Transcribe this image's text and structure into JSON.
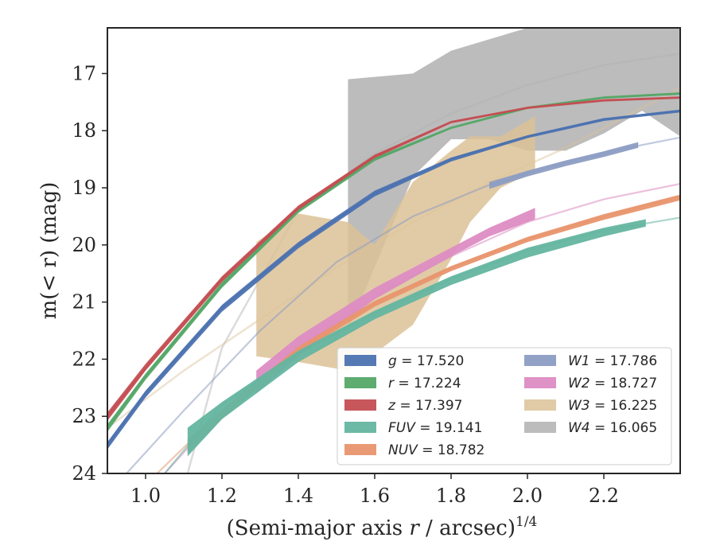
{
  "chart_data": {
    "type": "area",
    "xlabel": "(Semi-major axis r / arcsec)",
    "xlabel_exp": "1/4",
    "ylabel": "m(< r) (mag)",
    "xlim": [
      0.9,
      2.4
    ],
    "ylim": [
      24,
      16.2
    ],
    "y_inverted": true,
    "grid": false,
    "legend_position": "bottom-right",
    "x_ticks": [
      1.0,
      1.2,
      1.4,
      1.6,
      1.8,
      2.0,
      2.2
    ],
    "x_tick_labels": [
      "1.0",
      "1.2",
      "1.4",
      "1.6",
      "1.8",
      "2.0",
      "2.2"
    ],
    "y_ticks": [
      17,
      18,
      19,
      20,
      21,
      22,
      23,
      24
    ],
    "y_tick_labels": [
      "17",
      "18",
      "19",
      "20",
      "21",
      "22",
      "23",
      "24"
    ],
    "series": [
      {
        "name": "g",
        "legend_value": "= 17.520",
        "color": "#4c72b0",
        "thin_x": [
          0.9,
          1.0,
          1.2,
          1.4,
          1.6,
          1.8,
          2.0,
          2.2,
          2.4
        ],
        "thin_y": [
          23.5,
          22.6,
          21.1,
          20.0,
          19.1,
          18.5,
          18.1,
          17.8,
          17.65
        ],
        "band_x": [
          0.9,
          1.0,
          1.2,
          1.4,
          1.6,
          1.8,
          2.0,
          2.2,
          2.4
        ],
        "band_lo": [
          23.45,
          22.55,
          21.05,
          19.95,
          19.05,
          18.47,
          18.08,
          17.78,
          17.63
        ],
        "band_hi": [
          23.58,
          22.67,
          21.17,
          20.06,
          19.15,
          18.54,
          18.13,
          17.83,
          17.68
        ]
      },
      {
        "name": "r",
        "legend_value": "= 17.224",
        "color": "#55a868",
        "thin_x": [
          0.9,
          1.0,
          1.2,
          1.4,
          1.6,
          1.8,
          2.0,
          2.2,
          2.4
        ],
        "thin_y": [
          23.2,
          22.3,
          20.7,
          19.4,
          18.5,
          17.95,
          17.6,
          17.42,
          17.35
        ],
        "band_x": [
          0.9,
          1.0,
          1.2,
          1.4,
          1.6,
          1.8,
          2.0,
          2.2,
          2.4
        ],
        "band_lo": [
          23.14,
          22.25,
          20.65,
          19.36,
          18.47,
          17.93,
          17.58,
          17.4,
          17.33
        ],
        "band_hi": [
          23.27,
          22.36,
          20.75,
          19.44,
          18.53,
          17.97,
          17.62,
          17.44,
          17.37
        ]
      },
      {
        "name": "z",
        "legend_value": "= 17.397",
        "color": "#c44e52",
        "thin_x": [
          0.9,
          1.0,
          1.2,
          1.4,
          1.6,
          1.8,
          2.0,
          2.2,
          2.4
        ],
        "thin_y": [
          23.0,
          22.15,
          20.6,
          19.35,
          18.45,
          17.85,
          17.6,
          17.47,
          17.42
        ],
        "band_x": [
          0.9,
          1.0,
          1.2,
          1.4,
          1.6,
          1.8,
          2.0,
          2.2,
          2.4
        ],
        "band_lo": [
          22.93,
          22.08,
          20.55,
          19.31,
          18.42,
          17.83,
          17.58,
          17.45,
          17.4
        ],
        "band_hi": [
          23.08,
          22.2,
          20.65,
          19.39,
          18.48,
          17.87,
          17.62,
          17.49,
          17.44
        ]
      },
      {
        "name": "FUV",
        "legend_value": "= 19.141",
        "color": "#64b5a0",
        "thin_x": [
          1.05,
          1.2,
          1.4,
          1.6,
          1.8,
          2.0,
          2.2,
          2.4
        ],
        "thin_y": [
          24.0,
          22.8,
          21.9,
          21.2,
          20.6,
          20.1,
          19.75,
          19.52
        ],
        "band_x": [
          1.11,
          1.2,
          1.4,
          1.6,
          1.8,
          2.0,
          2.2,
          2.31
        ],
        "band_lo": [
          23.2,
          22.75,
          21.85,
          21.15,
          20.55,
          20.05,
          19.7,
          19.55
        ],
        "band_hi": [
          23.7,
          23.05,
          22.05,
          21.3,
          20.7,
          20.22,
          19.85,
          19.68
        ]
      },
      {
        "name": "NUV",
        "legend_value": "= 18.782",
        "color": "#e8956d",
        "thin_x": [
          1.03,
          1.2,
          1.4,
          1.6,
          1.8,
          2.0,
          2.2,
          2.4
        ],
        "thin_y": [
          24.0,
          22.9,
          21.8,
          21.0,
          20.4,
          19.9,
          19.5,
          19.15
        ],
        "band_x": [
          1.11,
          1.2,
          1.4,
          1.6,
          1.8,
          2.0,
          2.2,
          2.4
        ],
        "band_lo": [
          23.4,
          22.9,
          21.78,
          20.98,
          20.37,
          19.86,
          19.46,
          19.12
        ],
        "band_hi": [
          23.65,
          23.05,
          21.9,
          21.08,
          20.46,
          19.95,
          19.56,
          19.22
        ]
      },
      {
        "name": "W1",
        "legend_value": "= 17.786",
        "color": "#8c9dc3",
        "thin_x": [
          0.95,
          1.1,
          1.3,
          1.5,
          1.7,
          1.9,
          2.1,
          2.3,
          2.4
        ],
        "thin_y": [
          24.0,
          22.9,
          21.5,
          20.3,
          19.5,
          18.95,
          18.55,
          18.25,
          18.12
        ],
        "band_x": [
          1.9,
          2.0,
          2.1,
          2.2,
          2.29
        ],
        "band_lo": [
          18.9,
          18.7,
          18.52,
          18.36,
          18.2
        ],
        "band_hi": [
          19.02,
          18.8,
          18.62,
          18.46,
          18.3
        ]
      },
      {
        "name": "W2",
        "legend_value": "= 18.727",
        "color": "#dd8cc3",
        "thin_x": [
          1.05,
          1.2,
          1.4,
          1.6,
          1.8,
          2.0,
          2.2,
          2.4
        ],
        "thin_y": [
          24.0,
          22.9,
          21.8,
          20.9,
          20.2,
          19.6,
          19.2,
          18.93
        ],
        "band_x": [
          1.29,
          1.4,
          1.6,
          1.8,
          1.9,
          2.02
        ],
        "band_lo": [
          22.2,
          21.6,
          20.75,
          20.05,
          19.7,
          19.35
        ],
        "band_hi": [
          22.6,
          21.95,
          20.95,
          20.2,
          19.85,
          19.55
        ]
      },
      {
        "name": "W3",
        "legend_value": "= 16.225",
        "color": "#dcc297",
        "thin_x": [
          0.9,
          1.1,
          1.3,
          1.5,
          1.7,
          1.9,
          2.1,
          2.3,
          2.4
        ],
        "thin_y": [
          23.2,
          22.2,
          21.3,
          20.4,
          19.6,
          18.9,
          18.3,
          17.6,
          17.25
        ],
        "band_x": [
          1.29,
          1.4,
          1.53,
          1.6,
          1.7,
          1.8,
          1.85,
          1.93,
          2.02
        ],
        "band_lo": [
          19.95,
          19.45,
          19.6,
          20.0,
          18.9,
          18.35,
          18.1,
          18.1,
          17.75
        ],
        "band_hi": [
          21.95,
          22.05,
          22.2,
          21.9,
          21.4,
          20.25,
          19.6,
          19.0,
          18.7
        ]
      },
      {
        "name": "W4",
        "legend_value": "= 16.065",
        "color": "#b0b0b0",
        "thin_x": [
          1.11,
          1.2,
          1.4,
          1.6,
          1.8,
          2.0,
          2.2,
          2.4
        ],
        "thin_y": [
          24.0,
          21.8,
          19.4,
          18.4,
          17.7,
          17.2,
          16.85,
          16.65
        ],
        "band_x": [
          1.53,
          1.7,
          1.8,
          1.9,
          2.0,
          2.1,
          2.2,
          2.3,
          2.4
        ],
        "band_lo": [
          17.1,
          17.0,
          16.6,
          16.4,
          16.2,
          16.2,
          16.2,
          16.2,
          16.2
        ],
        "band_hi": [
          21.5,
          18.8,
          18.15,
          18.15,
          18.35,
          18.35,
          18.05,
          17.65,
          18.1
        ]
      }
    ]
  }
}
